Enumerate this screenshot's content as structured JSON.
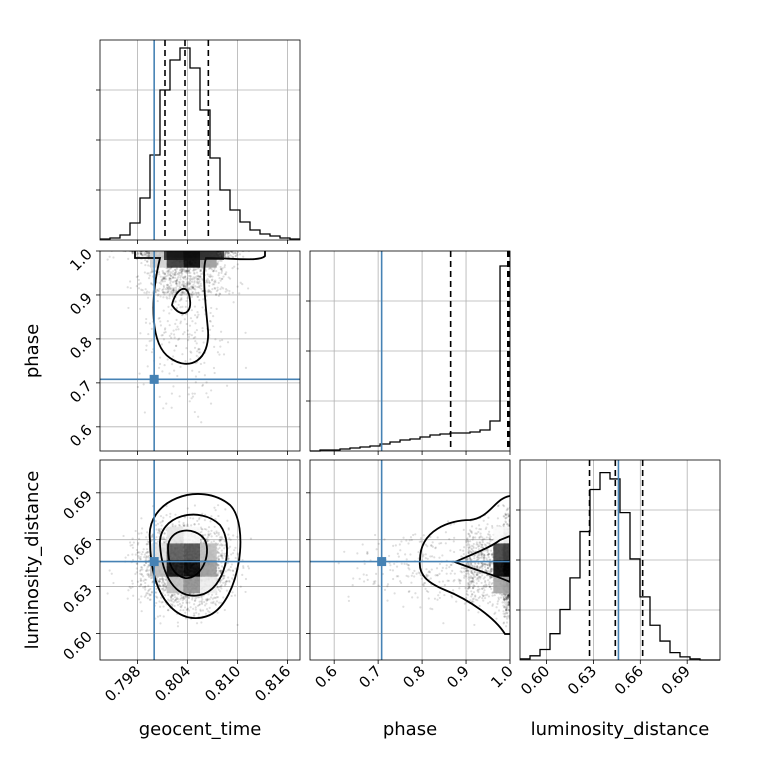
{
  "chart_data": {
    "type": "corner",
    "parameters": [
      "geocent_time",
      "phase",
      "luminosity_distance"
    ],
    "truths": [
      0.8,
      0.708,
      0.646
    ],
    "truth_color": "#4682b4",
    "quantiles": {
      "geocent_time": [
        0.8013,
        0.8037,
        0.8065
      ],
      "phase": [
        0.865,
        0.995,
        0.998
      ],
      "luminosity_distance": [
        0.6275,
        0.644,
        0.6615
      ]
    },
    "axes": {
      "geocent_time": {
        "range": [
          0.7935,
          0.8175
        ],
        "ticks": [
          0.798,
          0.804,
          0.81,
          0.816
        ],
        "tick_labels": [
          "0.798",
          "0.804",
          "0.810",
          "0.816"
        ]
      },
      "phase": {
        "range": [
          0.545,
          1.0
        ],
        "ticks": [
          0.6,
          0.7,
          0.8,
          0.9,
          1.0
        ],
        "tick_labels": [
          "0.6",
          "0.7",
          "0.8",
          "0.9",
          "1.0"
        ]
      },
      "luminosity_distance": {
        "range": [
          0.583,
          0.711
        ],
        "ticks": [
          0.6,
          0.63,
          0.66,
          0.69
        ],
        "tick_labels": [
          "0.60",
          "0.63",
          "0.66",
          "0.69"
        ]
      }
    },
    "histograms": {
      "geocent_time": {
        "edges": [
          0.7935,
          0.7947,
          0.7959,
          0.7971,
          0.7983,
          0.7995,
          0.8007,
          0.8019,
          0.8031,
          0.8043,
          0.8055,
          0.8067,
          0.8079,
          0.8091,
          0.8103,
          0.8115,
          0.8127,
          0.8139,
          0.8151,
          0.8163,
          0.8175
        ],
        "counts": [
          1,
          2,
          5,
          17,
          42,
          85,
          150,
          180,
          192,
          172,
          130,
          82,
          50,
          30,
          18,
          10,
          6,
          4,
          2,
          1
        ],
        "ymax": 200
      },
      "phase": {
        "edges": [
          0.545,
          0.5678,
          0.5905,
          0.6133,
          0.636,
          0.6588,
          0.6815,
          0.7043,
          0.727,
          0.7498,
          0.7725,
          0.7953,
          0.818,
          0.8408,
          0.8635,
          0.8863,
          0.909,
          0.9318,
          0.9545,
          0.9773,
          1.0
        ],
        "counts": [
          0,
          1,
          1,
          2,
          3,
          4,
          5,
          7,
          9,
          11,
          12,
          14,
          16,
          17,
          18,
          18,
          19,
          21,
          30,
          185
        ],
        "ymax": 200
      },
      "luminosity_distance": {
        "edges": [
          0.583,
          0.5894,
          0.5958,
          0.6022,
          0.6086,
          0.615,
          0.6214,
          0.6278,
          0.6342,
          0.6406,
          0.647,
          0.6534,
          0.6598,
          0.6662,
          0.6726,
          0.679,
          0.6854,
          0.6918,
          0.6982,
          0.7046,
          0.711
        ],
        "counts": [
          1,
          4,
          10,
          25,
          48,
          78,
          122,
          162,
          178,
          172,
          140,
          96,
          60,
          33,
          18,
          7,
          3,
          1,
          0,
          0
        ],
        "ymax": 190
      }
    }
  }
}
